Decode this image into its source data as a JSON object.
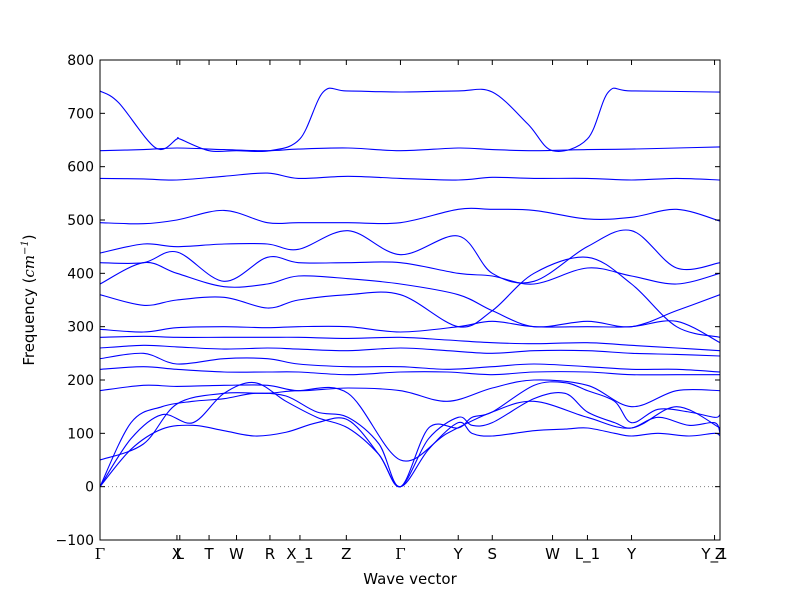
{
  "chart_data": {
    "type": "line",
    "title": "",
    "xlabel": "Wave vector",
    "ylabel": "Frequency (cm⁻¹)",
    "ylabel_parts": {
      "prefix": "Frequency (",
      "unit": "cm",
      "exponent": "−1",
      "suffix": ")"
    },
    "ylim": [
      -100,
      800
    ],
    "yticks": [
      -100,
      0,
      100,
      200,
      300,
      400,
      500,
      600,
      700,
      800
    ],
    "zero_line": {
      "y": 0,
      "style": "dotted",
      "color": "#808080"
    },
    "grid": false,
    "legend": "none",
    "line_color": "#0000ff",
    "kpoints": [
      {
        "label": "Γ",
        "x": 0.0
      },
      {
        "label": "X",
        "x": 1.241
      },
      {
        "label": "L",
        "x": 1.287
      },
      {
        "label": "T",
        "x": 1.759
      },
      {
        "label": "W",
        "x": 2.202
      },
      {
        "label": "R",
        "x": 2.741
      },
      {
        "label": "X_1",
        "x": 3.225
      },
      {
        "label": "Z",
        "x": 3.973
      },
      {
        "label": "Γ",
        "x": 4.846
      },
      {
        "label": "Y",
        "x": 5.778
      },
      {
        "label": "S",
        "x": 6.327
      },
      {
        "label": "W",
        "x": 7.299
      },
      {
        "label": "L_1",
        "x": 7.862
      },
      {
        "label": "Y",
        "x": 8.573
      },
      {
        "label": "Y_1",
        "x": 9.912
      },
      {
        "label": "Z",
        "x": 10.0
      }
    ],
    "xlim": [
      0,
      10.0
    ],
    "series": [
      {
        "x": [
          0,
          0.5,
          1.0,
          1.5,
          2.0,
          2.5,
          3.0,
          3.5,
          4.0,
          4.5,
          4.846,
          5.3,
          5.778,
          6.0,
          6.327,
          7.0,
          7.5,
          7.862,
          8.3,
          8.573,
          9.0,
          9.5,
          9.912,
          10.0
        ],
        "y": [
          0,
          70,
          108,
          115,
          105,
          95,
          102,
          120,
          125,
          60,
          0,
          70,
          120,
          100,
          95,
          105,
          108,
          110,
          100,
          95,
          100,
          95,
          100,
          95
        ]
      },
      {
        "x": [
          0,
          0.5,
          1.0,
          1.5,
          2.0,
          2.5,
          3.0,
          3.5,
          4.0,
          4.5,
          4.846,
          5.3,
          5.778,
          6.0,
          6.327,
          7.0,
          7.5,
          7.862,
          8.3,
          8.573,
          9.0,
          9.5,
          9.912,
          10.0
        ],
        "y": [
          0,
          90,
          135,
          120,
          175,
          195,
          160,
          130,
          110,
          60,
          0,
          90,
          130,
          115,
          120,
          165,
          175,
          140,
          120,
          110,
          130,
          115,
          120,
          100
        ]
      },
      {
        "x": [
          0,
          0.5,
          1.0,
          1.5,
          2.0,
          2.5,
          3.0,
          3.5,
          4.0,
          4.5,
          4.846,
          5.3,
          5.778,
          6.0,
          6.327,
          7.0,
          7.5,
          7.862,
          8.3,
          8.573,
          9.0,
          9.5,
          9.912,
          10.0
        ],
        "y": [
          0,
          120,
          150,
          160,
          165,
          175,
          170,
          140,
          130,
          80,
          0,
          110,
          110,
          130,
          140,
          190,
          195,
          180,
          160,
          120,
          145,
          140,
          130,
          135
        ]
      },
      {
        "x": [
          0,
          0.7,
          1.24,
          2.0,
          2.7,
          3.2,
          4.0,
          4.846,
          5.6,
          6.327,
          7.0,
          7.86,
          8.573,
          9.3,
          10.0
        ],
        "y": [
          50,
          80,
          155,
          175,
          175,
          180,
          175,
          50,
          100,
          140,
          160,
          130,
          110,
          150,
          110
        ]
      },
      {
        "x": [
          0,
          0.7,
          1.24,
          2.0,
          2.7,
          3.2,
          4.0,
          4.846,
          5.6,
          6.327,
          7.0,
          7.86,
          8.573,
          9.3,
          10.0
        ],
        "y": [
          180,
          190,
          188,
          190,
          190,
          180,
          185,
          180,
          160,
          185,
          200,
          190,
          150,
          180,
          180
        ]
      },
      {
        "x": [
          0,
          0.7,
          1.24,
          2.0,
          2.7,
          3.2,
          4.0,
          4.846,
          5.6,
          6.327,
          7.0,
          7.86,
          8.573,
          9.3,
          10.0
        ],
        "y": [
          220,
          225,
          220,
          215,
          215,
          215,
          210,
          215,
          215,
          210,
          215,
          215,
          210,
          210,
          210
        ]
      },
      {
        "x": [
          0,
          0.7,
          1.24,
          2.0,
          2.7,
          3.2,
          4.0,
          4.846,
          5.6,
          6.327,
          7.0,
          7.86,
          8.573,
          9.3,
          10.0
        ],
        "y": [
          240,
          250,
          230,
          240,
          240,
          230,
          225,
          225,
          220,
          225,
          230,
          225,
          220,
          220,
          215
        ]
      },
      {
        "x": [
          0,
          0.7,
          1.24,
          2.0,
          2.7,
          3.2,
          4.0,
          4.846,
          5.6,
          6.327,
          7.0,
          7.86,
          8.573,
          9.3,
          10.0
        ],
        "y": [
          260,
          265,
          262,
          258,
          260,
          258,
          255,
          260,
          255,
          250,
          255,
          255,
          250,
          248,
          245
        ]
      },
      {
        "x": [
          0,
          0.7,
          1.24,
          2.0,
          2.7,
          3.2,
          4.0,
          4.846,
          5.6,
          6.327,
          7.0,
          7.86,
          8.573,
          9.3,
          10.0
        ],
        "y": [
          280,
          282,
          280,
          280,
          280,
          280,
          278,
          280,
          275,
          270,
          268,
          270,
          265,
          260,
          255
        ]
      },
      {
        "x": [
          0,
          0.7,
          1.24,
          2.0,
          2.7,
          3.2,
          4.0,
          4.846,
          5.778,
          6.327,
          7.0,
          7.86,
          8.573,
          9.3,
          10.0
        ],
        "y": [
          295,
          290,
          298,
          300,
          298,
          300,
          300,
          290,
          300,
          310,
          300,
          300,
          300,
          310,
          270
        ]
      },
      {
        "x": [
          0,
          0.7,
          1.24,
          2.0,
          2.7,
          3.2,
          4.0,
          4.846,
          5.778,
          6.327,
          7.0,
          7.86,
          8.573,
          9.3,
          10.0
        ],
        "y": [
          360,
          340,
          350,
          355,
          335,
          350,
          360,
          360,
          300,
          330,
          400,
          430,
          380,
          300,
          280
        ]
      },
      {
        "x": [
          0,
          0.7,
          1.24,
          2.0,
          2.7,
          3.2,
          4.0,
          4.846,
          5.778,
          6.327,
          7.0,
          7.86,
          8.573,
          9.3,
          10.0
        ],
        "y": [
          380,
          420,
          400,
          375,
          380,
          395,
          390,
          380,
          360,
          330,
          300,
          310,
          300,
          330,
          360
        ]
      },
      {
        "x": [
          0,
          0.7,
          1.24,
          2.0,
          2.7,
          3.2,
          4.0,
          4.846,
          5.778,
          6.327,
          7.0,
          7.86,
          8.573,
          9.3,
          10.0
        ],
        "y": [
          420,
          420,
          440,
          385,
          430,
          420,
          420,
          420,
          400,
          395,
          380,
          410,
          395,
          380,
          400
        ]
      },
      {
        "x": [
          0,
          0.7,
          1.24,
          2.0,
          2.7,
          3.2,
          4.0,
          4.846,
          5.778,
          6.327,
          7.0,
          7.86,
          8.573,
          9.3,
          10.0
        ],
        "y": [
          438,
          455,
          450,
          455,
          455,
          445,
          480,
          435,
          470,
          400,
          385,
          450,
          480,
          410,
          420
        ]
      },
      {
        "x": [
          0,
          0.7,
          1.24,
          2.0,
          2.7,
          3.2,
          4.0,
          4.846,
          5.778,
          6.327,
          7.0,
          7.86,
          8.573,
          9.3,
          10.0
        ],
        "y": [
          495,
          493,
          500,
          518,
          495,
          495,
          495,
          495,
          520,
          520,
          518,
          502,
          505,
          520,
          498
        ]
      },
      {
        "x": [
          0,
          0.7,
          1.24,
          2.0,
          2.7,
          3.2,
          4.0,
          4.846,
          5.778,
          6.327,
          7.0,
          7.86,
          8.573,
          9.3,
          10.0
        ],
        "y": [
          578,
          577,
          575,
          582,
          588,
          578,
          582,
          578,
          575,
          580,
          578,
          578,
          575,
          578,
          575
        ]
      },
      {
        "x": [
          0,
          0.7,
          1.24,
          2.0,
          2.7,
          3.2,
          4.0,
          4.846,
          5.778,
          6.327,
          7.0,
          7.86,
          8.573,
          9.3,
          10.0
        ],
        "y": [
          630,
          632,
          635,
          632,
          630,
          633,
          635,
          630,
          635,
          632,
          630,
          632,
          633,
          635,
          637
        ]
      },
      {
        "x": [
          0,
          0.3,
          0.9,
          1.241,
          1.287,
          1.759,
          2.202,
          2.741,
          3.225,
          3.6,
          3.973,
          4.846,
          5.778,
          6.327,
          6.9,
          7.299,
          7.862,
          8.2,
          8.573,
          9.912,
          10.0
        ],
        "y": [
          742,
          720,
          635,
          652,
          652,
          630,
          630,
          630,
          652,
          740,
          742,
          740,
          742,
          740,
          680,
          630,
          652,
          740,
          742,
          740,
          740
        ]
      }
    ]
  }
}
